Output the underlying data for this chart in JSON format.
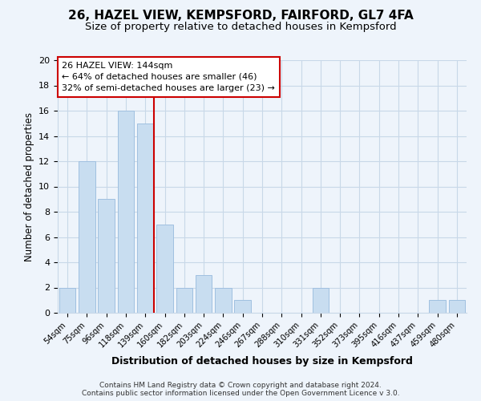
{
  "title": "26, HAZEL VIEW, KEMPSFORD, FAIRFORD, GL7 4FA",
  "subtitle": "Size of property relative to detached houses in Kempsford",
  "xlabel": "Distribution of detached houses by size in Kempsford",
  "ylabel": "Number of detached properties",
  "bar_labels": [
    "54sqm",
    "75sqm",
    "96sqm",
    "118sqm",
    "139sqm",
    "160sqm",
    "182sqm",
    "203sqm",
    "224sqm",
    "246sqm",
    "267sqm",
    "288sqm",
    "310sqm",
    "331sqm",
    "352sqm",
    "373sqm",
    "395sqm",
    "416sqm",
    "437sqm",
    "459sqm",
    "480sqm"
  ],
  "bar_values": [
    2,
    12,
    9,
    16,
    15,
    7,
    2,
    3,
    2,
    1,
    0,
    0,
    0,
    2,
    0,
    0,
    0,
    0,
    0,
    1,
    1
  ],
  "bar_color": "#c8ddf0",
  "bar_edge_color": "#a0c0e0",
  "highlight_line_color": "#cc0000",
  "ylim": [
    0,
    20
  ],
  "yticks": [
    0,
    2,
    4,
    6,
    8,
    10,
    12,
    14,
    16,
    18,
    20
  ],
  "annotation_title": "26 HAZEL VIEW: 144sqm",
  "annotation_line1": "← 64% of detached houses are smaller (46)",
  "annotation_line2": "32% of semi-detached houses are larger (23) →",
  "footer_line1": "Contains HM Land Registry data © Crown copyright and database right 2024.",
  "footer_line2": "Contains public sector information licensed under the Open Government Licence v 3.0.",
  "grid_color": "#c8d8e8",
  "background_color": "#eef4fb",
  "title_fontsize": 11,
  "subtitle_fontsize": 9.5
}
